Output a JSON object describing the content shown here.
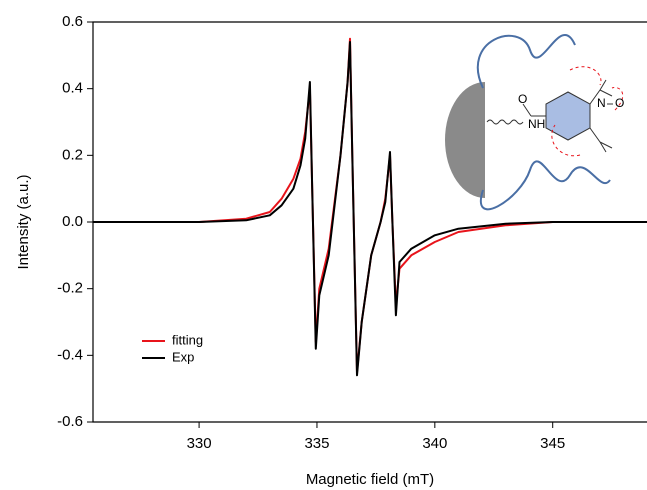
{
  "chart_data": {
    "type": "line",
    "xlabel": "Magnetic field (mT)",
    "ylabel": "Intensity (a.u.)",
    "x": [
      325.5,
      330,
      332,
      333,
      333.5,
      334,
      334.3,
      334.5,
      334.7,
      334.8,
      334.95,
      335.1,
      335.5,
      336,
      336.3,
      336.4,
      336.5,
      336.7,
      336.9,
      337.3,
      337.7,
      337.9,
      338.1,
      338.2,
      338.35,
      338.5,
      339,
      340,
      341,
      343,
      345,
      349
    ],
    "series": [
      {
        "name": "fitting",
        "color": "#e8141b",
        "values": [
          0,
          0,
          0.01,
          0.03,
          0.07,
          0.13,
          0.19,
          0.27,
          0.4,
          0.1,
          -0.36,
          -0.2,
          -0.08,
          0.2,
          0.42,
          0.55,
          0.2,
          -0.45,
          -0.3,
          -0.1,
          0,
          0.07,
          0.2,
          0,
          -0.25,
          -0.14,
          -0.1,
          -0.06,
          -0.03,
          -0.01,
          0,
          0
        ]
      },
      {
        "name": "Exp",
        "color": "#000000",
        "values": [
          0,
          0,
          0.005,
          0.02,
          0.05,
          0.1,
          0.17,
          0.25,
          0.42,
          0.1,
          -0.38,
          -0.22,
          -0.1,
          0.2,
          0.42,
          0.54,
          0.2,
          -0.46,
          -0.3,
          -0.1,
          0,
          0.06,
          0.21,
          0,
          -0.28,
          -0.12,
          -0.08,
          -0.04,
          -0.02,
          -0.005,
          0,
          0
        ]
      }
    ],
    "xlim": [
      325.5,
      349
    ],
    "ylim": [
      -0.6,
      0.6
    ],
    "xticks": [
      330,
      335,
      340,
      345
    ],
    "yticks": [
      -0.6,
      -0.4,
      -0.2,
      {
        "value": 0,
        "label": "0.0"
      },
      0.2,
      0.4,
      0.6
    ],
    "legend": "lower left",
    "annotations": [
      "O",
      "NH",
      "N",
      "O"
    ]
  }
}
